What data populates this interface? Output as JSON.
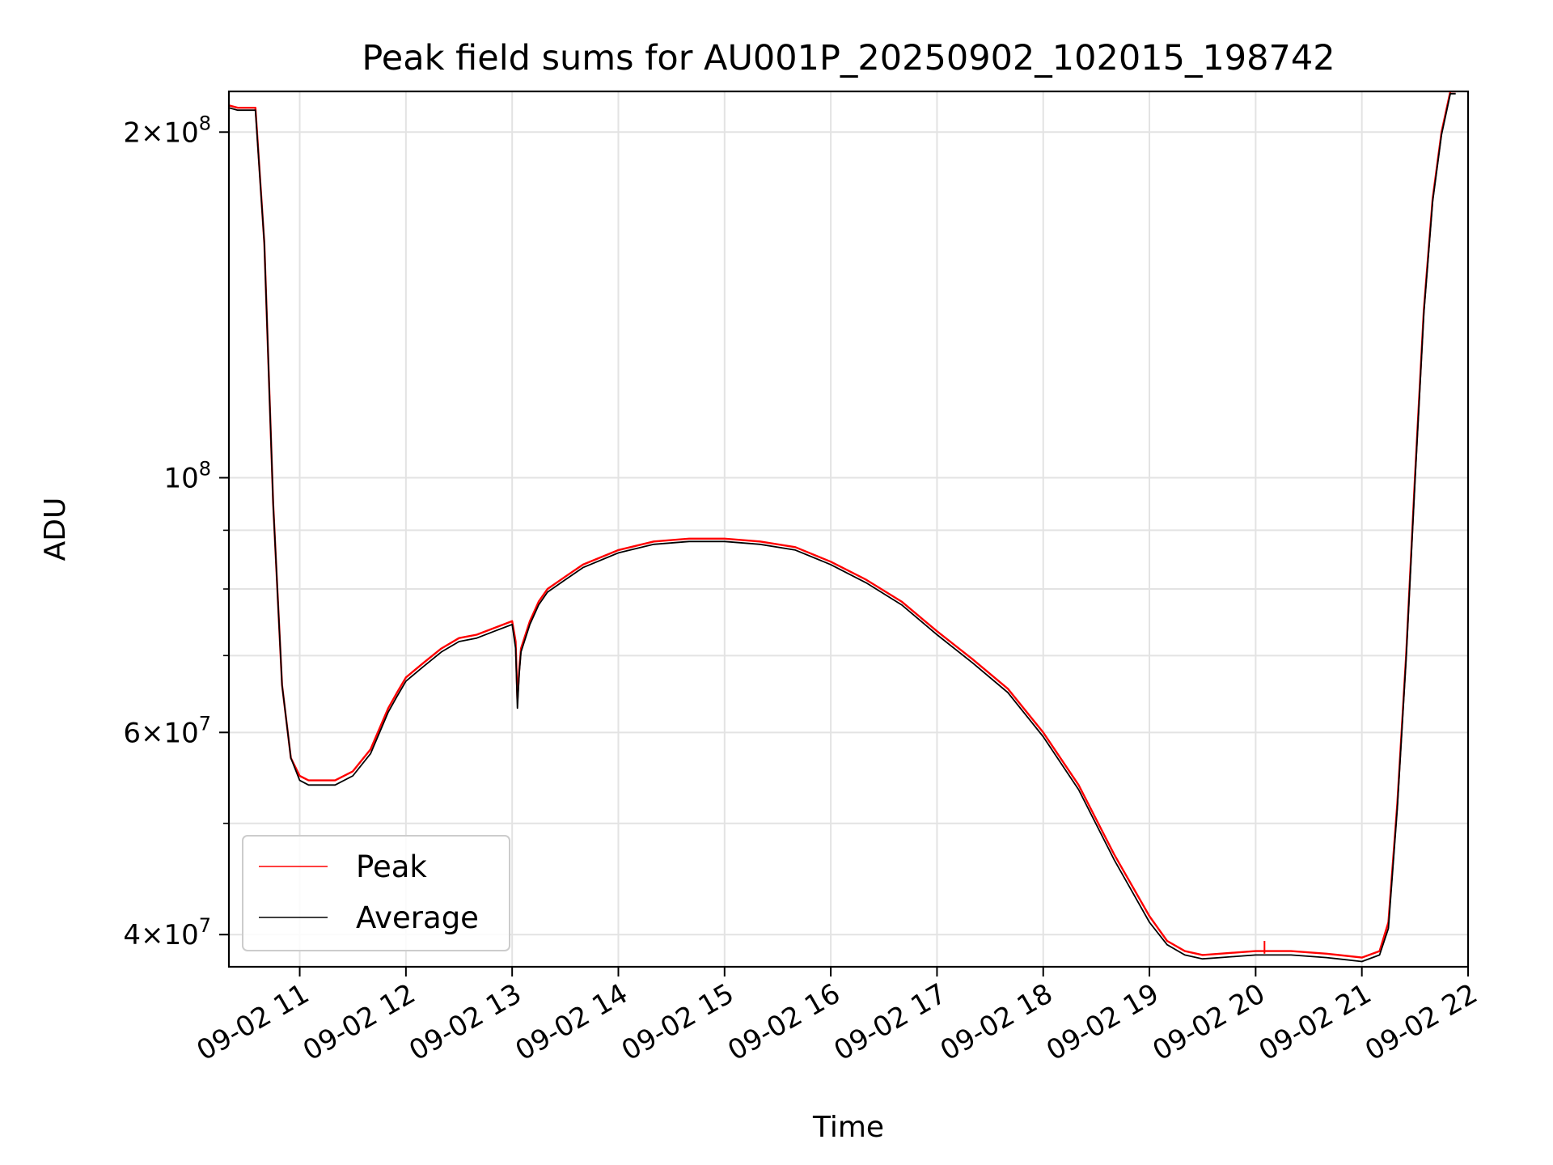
{
  "chart_data": {
    "type": "line",
    "title": "Peak field sums for AU001P_20250902_102015_198742",
    "xlabel": "Time",
    "ylabel": "ADU",
    "yscale": "log",
    "xlim": [
      "2025-09-02 10:20",
      "2025-09-02 22:00"
    ],
    "ylim": [
      37500000,
      217000000
    ],
    "x_ticks": [
      "09-02 11",
      "09-02 12",
      "09-02 13",
      "09-02 14",
      "09-02 15",
      "09-02 16",
      "09-02 17",
      "09-02 18",
      "09-02 19",
      "09-02 20",
      "09-02 21",
      "09-02 22"
    ],
    "y_ticks": [
      {
        "value": 40000000,
        "label_mantissa": "4",
        "label_exp": "7"
      },
      {
        "value": 60000000,
        "label_mantissa": "6",
        "label_exp": "7"
      },
      {
        "value": 100000000,
        "label_mantissa": "",
        "label_exp": "8"
      },
      {
        "value": 200000000,
        "label_mantissa": "2",
        "label_exp": "8"
      }
    ],
    "y_minor_ticks": [
      50000000,
      70000000,
      80000000,
      90000000
    ],
    "grid": true,
    "legend_position": "lower-left",
    "x": [
      "10:20",
      "10:25",
      "10:30",
      "10:35",
      "10:40",
      "10:45",
      "10:50",
      "10:55",
      "11:00",
      "11:05",
      "11:10",
      "11:20",
      "11:30",
      "11:40",
      "11:50",
      "11:55",
      "12:00",
      "12:10",
      "12:20",
      "12:30",
      "12:40",
      "12:50",
      "13:00",
      "13:02",
      "13:03",
      "13:04",
      "13:05",
      "13:10",
      "13:15",
      "13:20",
      "13:30",
      "13:40",
      "14:00",
      "14:20",
      "14:40",
      "15:00",
      "15:20",
      "15:40",
      "16:00",
      "16:20",
      "16:40",
      "17:00",
      "17:20",
      "17:40",
      "18:00",
      "18:20",
      "18:40",
      "19:00",
      "19:10",
      "19:20",
      "19:30",
      "19:40",
      "20:00",
      "20:20",
      "20:40",
      "21:00",
      "21:10",
      "21:15",
      "21:20",
      "21:25",
      "21:30",
      "21:35",
      "21:40",
      "21:45",
      "21:50",
      "21:53"
    ],
    "series": [
      {
        "name": "Peak",
        "color": "#ff0000",
        "values": [
          211000000,
          210000000,
          210000000,
          210000000,
          160000000,
          95000000,
          66000000,
          57000000,
          55000000,
          54500000,
          54500000,
          54500000,
          55500000,
          58000000,
          63000000,
          65000000,
          67000000,
          69000000,
          71000000,
          72500000,
          73000000,
          74000000,
          75000000,
          72000000,
          64000000,
          68000000,
          71000000,
          75000000,
          78000000,
          80000000,
          82000000,
          84000000,
          86500000,
          88000000,
          88500000,
          88500000,
          88000000,
          87000000,
          84500000,
          81500000,
          78000000,
          73500000,
          69500000,
          65500000,
          60000000,
          54000000,
          47000000,
          41500000,
          39500000,
          38700000,
          38400000,
          38500000,
          38700000,
          38700000,
          38500000,
          38200000,
          38700000,
          41000000,
          52000000,
          70000000,
          100000000,
          140000000,
          175000000,
          200000000,
          217000000,
          217000000
        ]
      },
      {
        "name": "Average",
        "color": "#000000",
        "values": [
          210000000,
          209000000,
          209000000,
          209000000,
          160000000,
          95000000,
          66000000,
          57000000,
          54500000,
          54000000,
          54000000,
          54000000,
          55000000,
          57500000,
          62500000,
          64500000,
          66500000,
          68500000,
          70500000,
          72000000,
          72500000,
          73500000,
          74500000,
          71000000,
          63000000,
          67500000,
          70500000,
          74500000,
          77500000,
          79500000,
          81500000,
          83500000,
          86000000,
          87500000,
          88000000,
          88000000,
          87500000,
          86500000,
          84000000,
          81000000,
          77500000,
          73000000,
          69000000,
          65000000,
          59500000,
          53500000,
          46500000,
          41000000,
          39200000,
          38400000,
          38100000,
          38200000,
          38400000,
          38400000,
          38200000,
          37900000,
          38400000,
          40500000,
          51500000,
          69500000,
          99000000,
          139000000,
          174000000,
          199000000,
          216000000,
          216000000
        ]
      }
    ],
    "annotations": [
      {
        "series": "Peak",
        "x": "20:05",
        "value": 39500000,
        "kind": "spike"
      }
    ]
  }
}
